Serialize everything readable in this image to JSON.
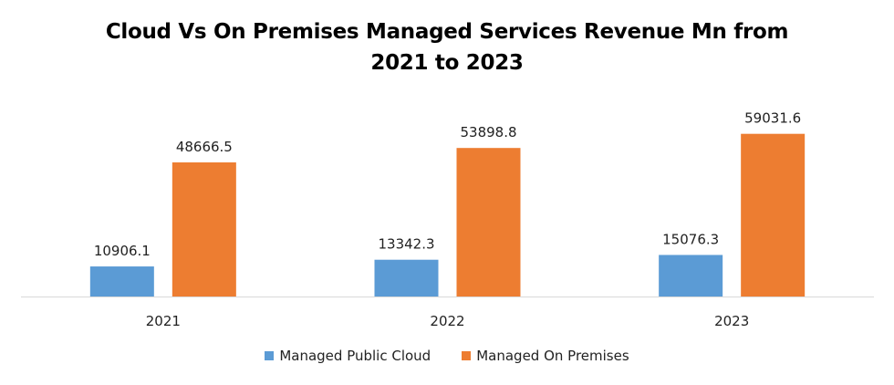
{
  "chart_data": {
    "type": "bar",
    "title": "Cloud Vs On Premises Managed Services Revenue Mn from 2021 to 2023",
    "title_lines": [
      "Cloud Vs On Premises Managed Services Revenue Mn from",
      "2021 to 2023"
    ],
    "categories": [
      "2021",
      "2022",
      "2023"
    ],
    "series": [
      {
        "name": "Managed Public Cloud",
        "color": "#5b9bd5",
        "values": [
          10906.1,
          13342.3,
          15076.3
        ],
        "labels": [
          "10906.1",
          "13342.3",
          "15076.3"
        ]
      },
      {
        "name": "Managed On Premises",
        "color": "#ed7d31",
        "values": [
          48666.5,
          53898.8,
          59031.6
        ],
        "labels": [
          "48666.5",
          "53898.8",
          "59031.6"
        ]
      }
    ],
    "xlabel": "",
    "ylabel": "",
    "ylim": [
      0,
      70000
    ],
    "grid": false,
    "legend": "bottom",
    "axis_color": "#d9d9d9"
  }
}
